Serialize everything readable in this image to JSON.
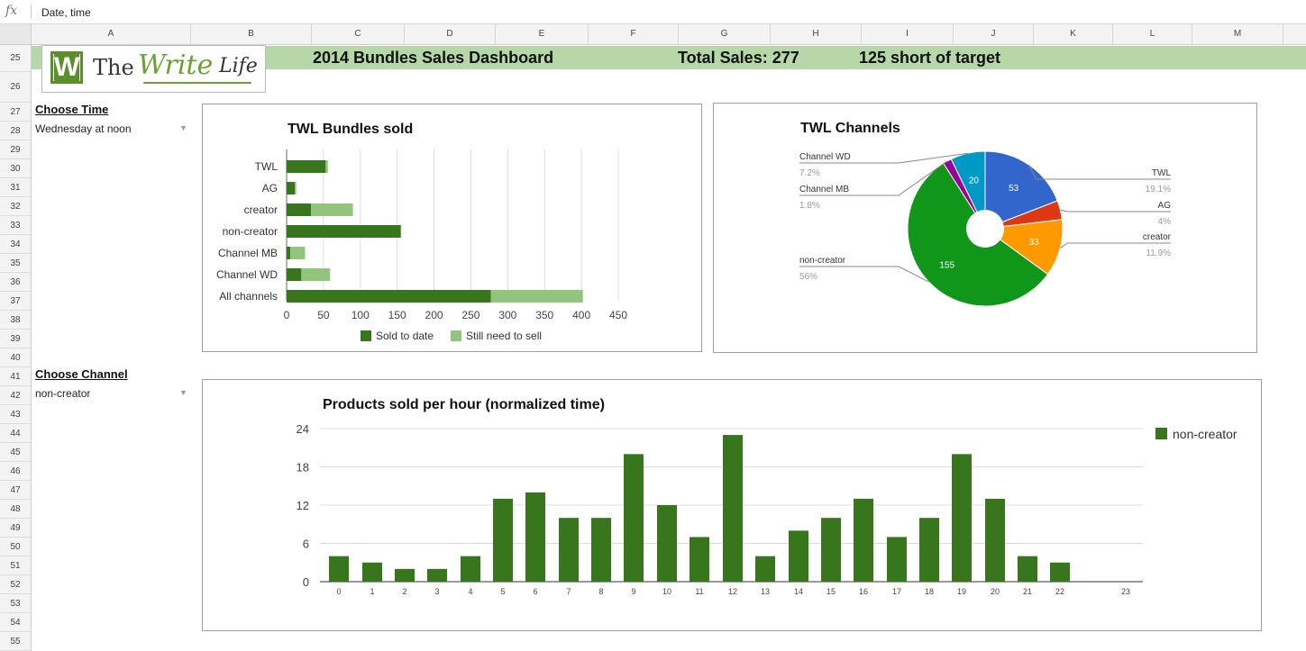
{
  "formula_bar": {
    "fx_label": "fx",
    "value": "Date, time"
  },
  "columns": [
    "A",
    "B",
    "C",
    "D",
    "E",
    "F",
    "G",
    "H",
    "I",
    "J",
    "K",
    "L",
    "M"
  ],
  "rows": [
    "25",
    "26",
    "27",
    "28",
    "29",
    "30",
    "31",
    "32",
    "33",
    "34",
    "35",
    "36",
    "37",
    "38",
    "39",
    "40",
    "41",
    "42",
    "43",
    "44",
    "45",
    "46",
    "47",
    "48",
    "49",
    "50",
    "51",
    "52",
    "53",
    "54",
    "55"
  ],
  "logo": {
    "the": "The",
    "write": "Write",
    "life": "Life",
    "mark": "W"
  },
  "header": {
    "title": "2014 Bundles Sales Dashboard",
    "total_sales": "Total Sales: 277",
    "short_of_target": "125 short of target"
  },
  "controls": {
    "choose_time_label": "Choose Time",
    "time_value": "Wednesday at noon",
    "choose_channel_label": "Choose Channel",
    "channel_value": "non-creator"
  },
  "colors": {
    "dark_green": "#38761d",
    "light_green": "#93c47d",
    "header_green": "#b6d7a8"
  },
  "chart_data": [
    {
      "type": "bar",
      "orientation": "horizontal",
      "stacked": true,
      "title": "TWL Bundles sold",
      "categories": [
        "TWL",
        "AG",
        "creator",
        "non-creator",
        "Channel MB",
        "Channel WD",
        "All channels"
      ],
      "series": [
        {
          "name": "Sold to date",
          "color": "#38761d",
          "values": [
            53,
            11,
            33,
            155,
            5,
            20,
            277
          ]
        },
        {
          "name": "Still need to sell",
          "color": "#93c47d",
          "values": [
            3,
            2,
            57,
            0,
            20,
            39,
            125
          ]
        }
      ],
      "xlim": [
        0,
        450
      ],
      "xticks": [
        "0",
        "50",
        "100",
        "150",
        "200",
        "250",
        "300",
        "350",
        "400",
        "450"
      ],
      "grid": true,
      "legend": "bottom"
    },
    {
      "type": "pie",
      "donut": true,
      "title": "TWL Channels",
      "slices": [
        {
          "label": "TWL",
          "value": 53,
          "percent": "19.1%",
          "color": "#3366cc"
        },
        {
          "label": "AG",
          "value": 11,
          "percent": "4%",
          "color": "#dc3912"
        },
        {
          "label": "creator",
          "value": 33,
          "percent": "11.9%",
          "color": "#ff9900"
        },
        {
          "label": "non-creator",
          "value": 155,
          "percent": "56%",
          "color": "#109618"
        },
        {
          "label": "Channel MB",
          "value": 5,
          "percent": "1.8%",
          "color": "#990099"
        },
        {
          "label": "Channel WD",
          "value": 20,
          "percent": "7.2%",
          "color": "#0099c6"
        }
      ],
      "slice_text": [
        "53",
        "",
        "33",
        "155",
        "",
        "20"
      ],
      "legend": "labeled"
    },
    {
      "type": "bar",
      "title": "Products sold per hour (normalized time)",
      "categories": [
        "0",
        "1",
        "2",
        "3",
        "4",
        "5",
        "6",
        "7",
        "8",
        "9",
        "10",
        "11",
        "12",
        "13",
        "14",
        "15",
        "16",
        "17",
        "18",
        "19",
        "20",
        "21",
        "22",
        "23"
      ],
      "series": [
        {
          "name": "non-creator",
          "color": "#38761d",
          "values": [
            4,
            3,
            2,
            2,
            4,
            13,
            14,
            10,
            10,
            20,
            12,
            7,
            23,
            4,
            8,
            10,
            13,
            7,
            10,
            20,
            13,
            4,
            3,
            0
          ]
        }
      ],
      "ylim": [
        0,
        24
      ],
      "yticks": [
        "0",
        "6",
        "12",
        "18",
        "24"
      ],
      "grid": true,
      "legend": "right"
    }
  ]
}
